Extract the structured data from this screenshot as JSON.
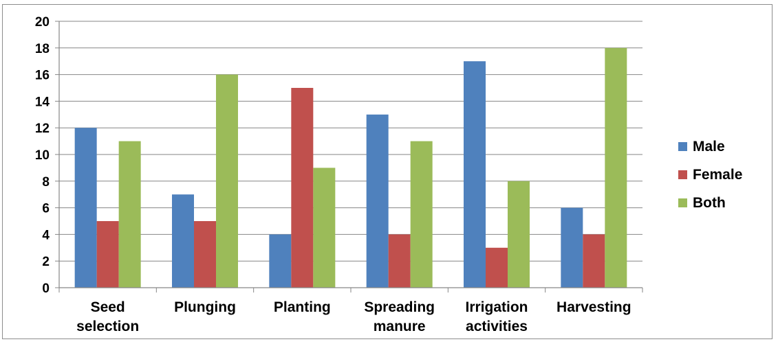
{
  "chart_data": {
    "type": "bar",
    "categories": [
      [
        "Seed",
        "selection"
      ],
      [
        "Plunging"
      ],
      [
        "Planting"
      ],
      [
        "Spreading",
        "manure"
      ],
      [
        "Irrigation",
        "activities"
      ],
      [
        "Harvesting"
      ]
    ],
    "series": [
      {
        "name": "Male",
        "values": [
          12,
          7,
          4,
          13,
          17,
          6
        ],
        "color": "#4f81bd"
      },
      {
        "name": "Female",
        "values": [
          5,
          5,
          15,
          4,
          3,
          4
        ],
        "color": "#c0504d"
      },
      {
        "name": "Both",
        "values": [
          11,
          16,
          9,
          11,
          8,
          18
        ],
        "color": "#9bbb59"
      }
    ],
    "y_ticks": [
      "0",
      "2",
      "4",
      "6",
      "8",
      "10",
      "12",
      "14",
      "16",
      "18",
      "20"
    ],
    "ylim": [
      0,
      20
    ],
    "grid": true,
    "legend_position": "right"
  }
}
